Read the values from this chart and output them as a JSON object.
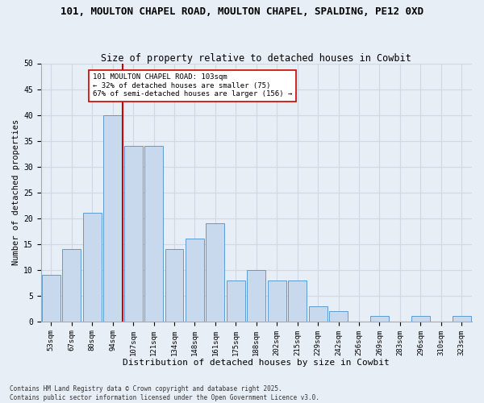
{
  "title1": "101, MOULTON CHAPEL ROAD, MOULTON CHAPEL, SPALDING, PE12 0XD",
  "title2": "Size of property relative to detached houses in Cowbit",
  "xlabel": "Distribution of detached houses by size in Cowbit",
  "ylabel": "Number of detached properties",
  "categories": [
    "53sqm",
    "67sqm",
    "80sqm",
    "94sqm",
    "107sqm",
    "121sqm",
    "134sqm",
    "148sqm",
    "161sqm",
    "175sqm",
    "188sqm",
    "202sqm",
    "215sqm",
    "229sqm",
    "242sqm",
    "256sqm",
    "269sqm",
    "283sqm",
    "296sqm",
    "310sqm",
    "323sqm"
  ],
  "values": [
    9,
    14,
    21,
    40,
    34,
    34,
    14,
    16,
    19,
    8,
    10,
    8,
    8,
    3,
    2,
    0,
    1,
    0,
    1,
    0,
    1
  ],
  "bar_color": "#c9d9ed",
  "bar_edge_color": "#5b9bd5",
  "grid_color": "#d0d8e4",
  "bg_color": "#e8eef6",
  "vline_x_index": 3,
  "vline_color": "#cc0000",
  "annotation_text": "101 MOULTON CHAPEL ROAD: 103sqm\n← 32% of detached houses are smaller (75)\n67% of semi-detached houses are larger (156) →",
  "annotation_box_color": "#ffffff",
  "annotation_box_edge": "#cc0000",
  "ylim": [
    0,
    50
  ],
  "yticks": [
    0,
    5,
    10,
    15,
    20,
    25,
    30,
    35,
    40,
    45,
    50
  ],
  "footer1": "Contains HM Land Registry data © Crown copyright and database right 2025.",
  "footer2": "Contains public sector information licensed under the Open Government Licence v3.0."
}
